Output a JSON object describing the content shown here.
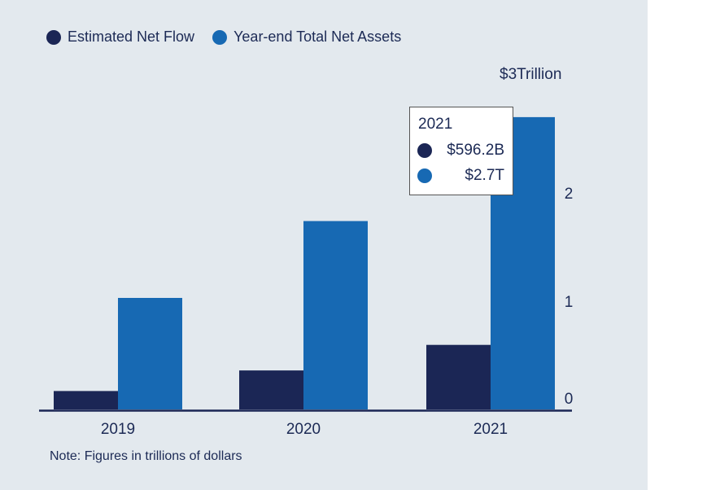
{
  "legend": [
    {
      "label": "Estimated Net Flow",
      "color": "#1b2655"
    },
    {
      "label": "Year-end Total Net Assets",
      "color": "#1769b3"
    }
  ],
  "unit_label": "$3Trillion",
  "note": "Note: Figures in trillions of dollars",
  "tooltip": {
    "year": "2021",
    "net_flow": "$596.2B",
    "net_assets": "$2.7T"
  },
  "chart_data": {
    "type": "bar",
    "categories": [
      "2019",
      "2020",
      "2021"
    ],
    "series": [
      {
        "name": "Estimated Net Flow",
        "values": [
          0.17,
          0.36,
          0.5962
        ],
        "color": "#1b2655"
      },
      {
        "name": "Year-end Total Net Assets",
        "values": [
          1.03,
          1.74,
          2.7
        ],
        "color": "#1769b3"
      }
    ],
    "ylim": [
      0,
      3
    ],
    "yticks": [
      "0",
      "1",
      "2"
    ],
    "ytick_values": [
      0,
      1,
      2
    ],
    "y_top_label": "$3Trillion",
    "xlabel": "",
    "ylabel": "",
    "legend_position": "top-left",
    "grid": false
  }
}
